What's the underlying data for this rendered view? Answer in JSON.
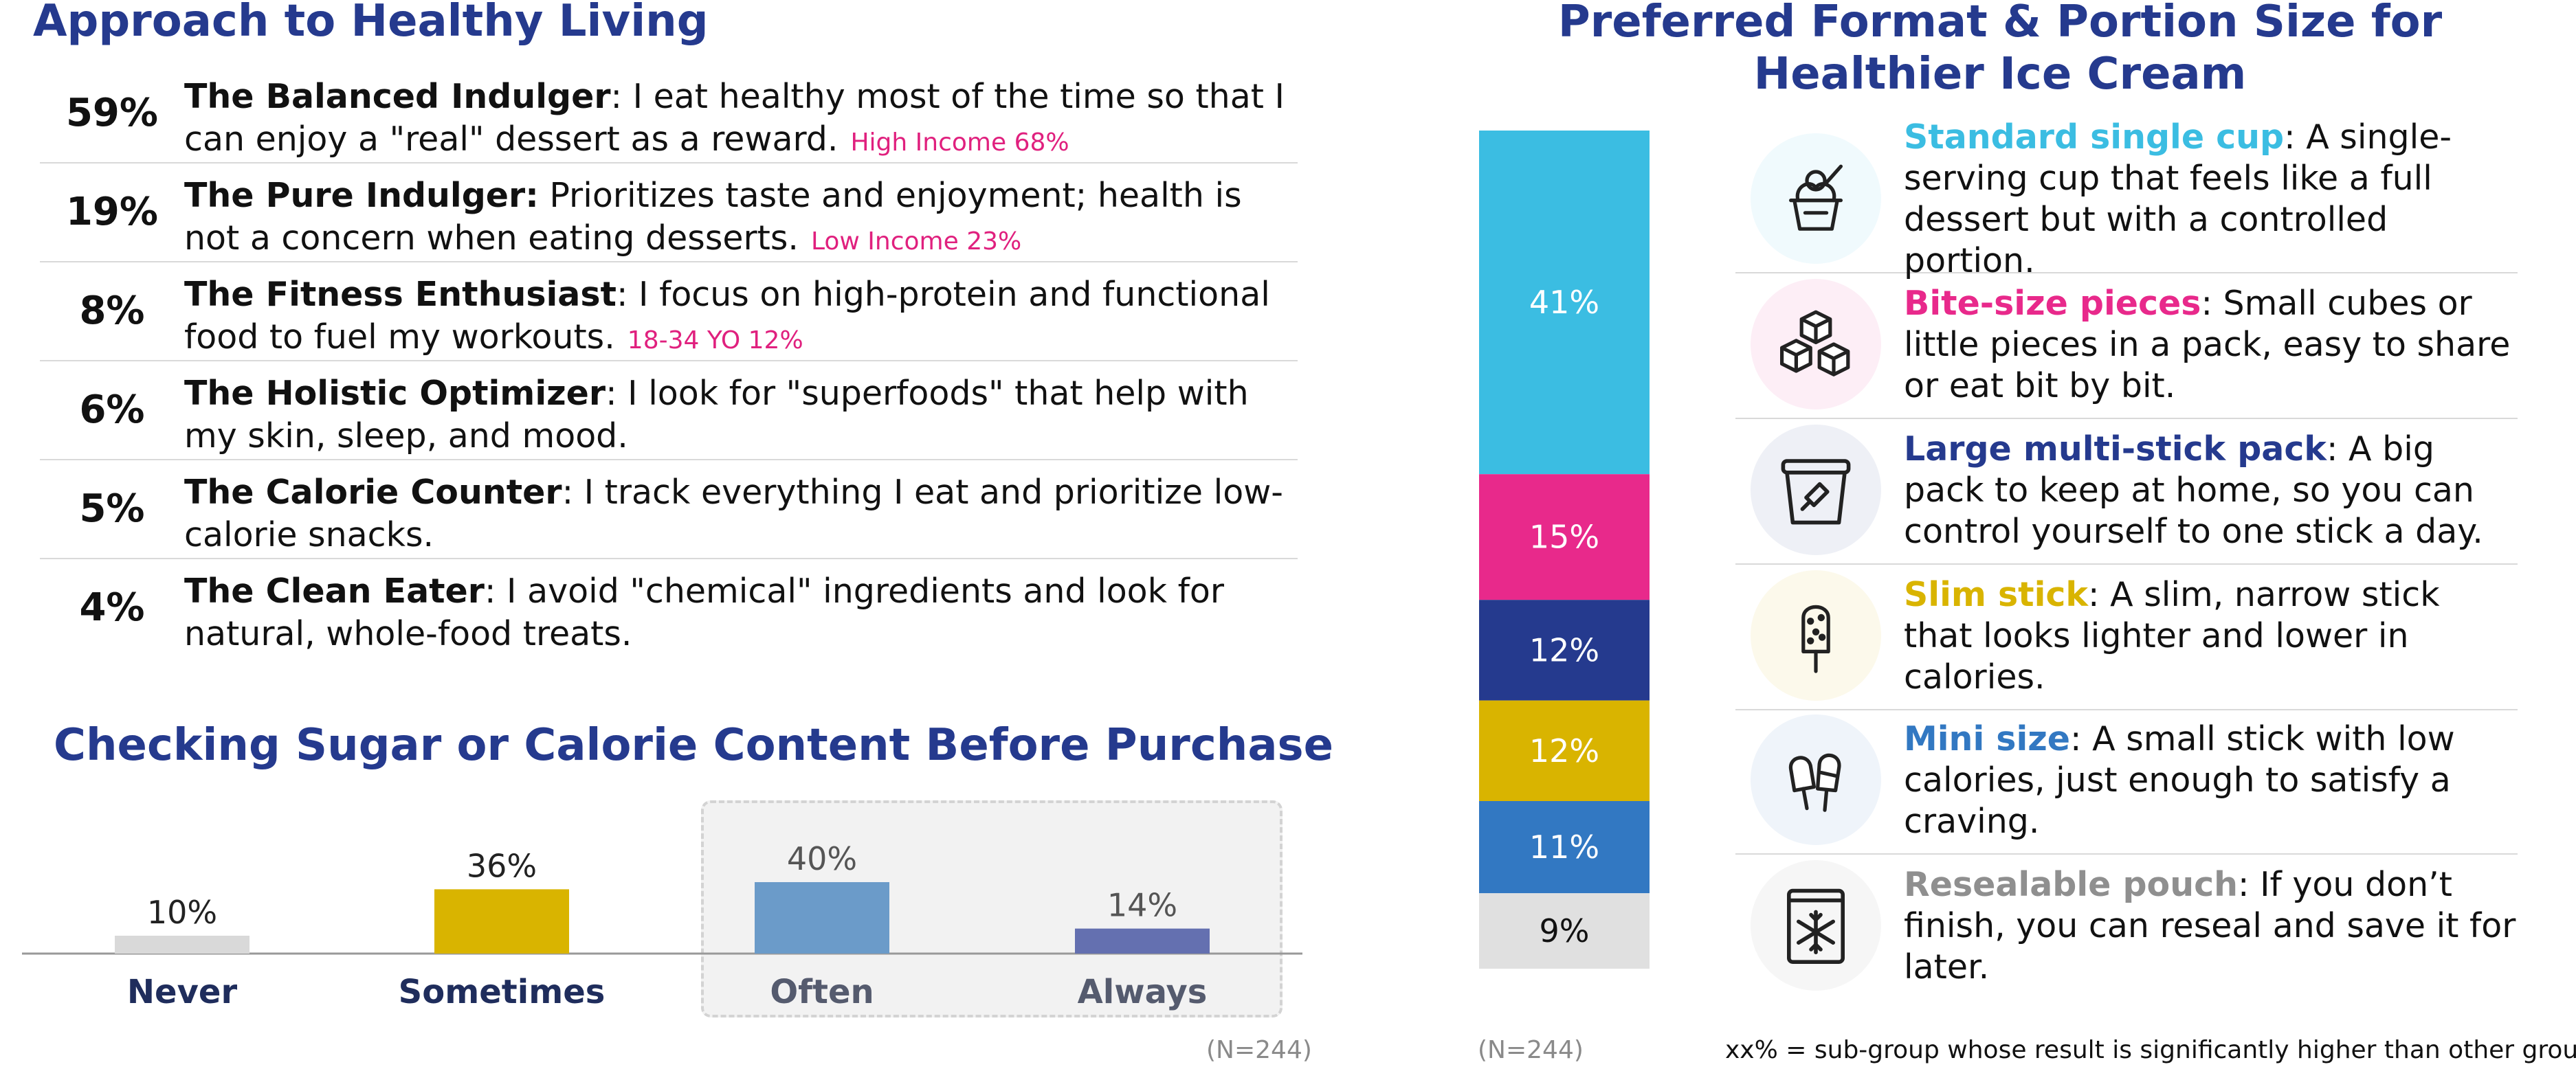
{
  "approach": {
    "title": "Approach to Healthy Living",
    "rows": [
      {
        "pct": "59%",
        "name": "The Balanced Indulger",
        "text": ": I eat healthy most of the time so that I can enjoy a \"real\" dessert as a reward.",
        "sub": "High Income 68%"
      },
      {
        "pct": "19%",
        "name": "The Pure Indulger:",
        "text": " Prioritizes taste and enjoyment; health is not a concern when eating desserts.",
        "sub": "Low Income 23%"
      },
      {
        "pct": "8%",
        "name": "The Fitness Enthusiast",
        "text": ": I focus on high-protein and functional food to fuel my workouts.",
        "sub": "18-34 YO 12%"
      },
      {
        "pct": "6%",
        "name": "The Holistic Optimizer",
        "text": ": I look for \"superfoods\" that help with my skin, sleep, and mood.",
        "sub": ""
      },
      {
        "pct": "5%",
        "name": "The Calorie Counter",
        "text": ": I track everything I eat and prioritize low-calorie snacks.",
        "sub": ""
      },
      {
        "pct": "4%",
        "name": "The Clean Eater",
        "text": ": I avoid \"chemical\" ingredients and look for natural, whole-food treats.",
        "sub": ""
      }
    ]
  },
  "sugar": {
    "title": "Checking Sugar or Calorie Content Before Purchase",
    "n": "(N=244)"
  },
  "preferred": {
    "title": "Preferred Format & Portion Size for Healthier Ice Cream",
    "n": "(N=244)",
    "items": [
      {
        "label": "Standard single cup",
        "text": ": A single-serving cup that feels like a full dessert but with a controlled portion.",
        "color": "#3bbde2",
        "icon": "ice-cream-cup-icon"
      },
      {
        "label": "Bite-size pieces",
        "text": ": Small cubes or little pieces in a pack, easy to share or eat bit by bit.",
        "color": "#e8298b",
        "icon": "cubes-icon"
      },
      {
        "label": "Large multi-stick pack",
        "text": ": A big pack to keep at home, so you can control yourself to one stick a day.",
        "color": "#253a8e",
        "icon": "tub-icon"
      },
      {
        "label": "Slim stick",
        "text": ": A slim, narrow stick that looks lighter and lower in calories.",
        "color": "#d9b400",
        "icon": "popsicle-icon"
      },
      {
        "label": "Mini size",
        "text": ": A small stick with low calories, just enough to satisfy a craving.",
        "color": "#3278c2",
        "icon": "mini-sticks-icon"
      },
      {
        "label": "Resealable pouch",
        "text": ": If you don’t finish, you can reseal and save it for later.",
        "color": "#8f8f8f",
        "icon": "pouch-icon"
      }
    ]
  },
  "footnote": "xx% = sub-group whose result is significantly higher than other groups",
  "chart_data": [
    {
      "type": "bar",
      "title": "Checking Sugar or Calorie Content Before Purchase",
      "categories": [
        "Never",
        "Sometimes",
        "Often",
        "Always"
      ],
      "values": [
        10,
        36,
        40,
        14
      ],
      "labels": [
        "10%",
        "36%",
        "40%",
        "14%"
      ],
      "colors": [
        "#d9d9d9",
        "#d9b400",
        "#6b9bc9",
        "#6470b0"
      ],
      "label_colors": [
        "#1f2d5c",
        "#1f2d5c",
        "#555b6e",
        "#555b6e"
      ],
      "highlighted": [
        "Often",
        "Always"
      ],
      "ylim": [
        0,
        40
      ]
    },
    {
      "type": "bar",
      "stacked": true,
      "title": "Preferred Format & Portion Size for Healthier Ice Cream",
      "series": [
        {
          "name": "Standard single cup",
          "value": 41,
          "label": "41%",
          "color": "#3bbde2",
          "text_color": "#ffffff"
        },
        {
          "name": "Bite-size pieces",
          "value": 15,
          "label": "15%",
          "color": "#e8298b",
          "text_color": "#ffffff"
        },
        {
          "name": "Large multi-stick pack",
          "value": 12,
          "label": "12%",
          "color": "#253a8e",
          "text_color": "#ffffff"
        },
        {
          "name": "Slim stick",
          "value": 12,
          "label": "12%",
          "color": "#d9b400",
          "text_color": "#ffffff"
        },
        {
          "name": "Mini size",
          "value": 11,
          "label": "11%",
          "color": "#3278c2",
          "text_color": "#ffffff"
        },
        {
          "name": "Resealable pouch",
          "value": 9,
          "label": "9%",
          "color": "#e0e0e0",
          "text_color": "#111111"
        }
      ]
    }
  ]
}
